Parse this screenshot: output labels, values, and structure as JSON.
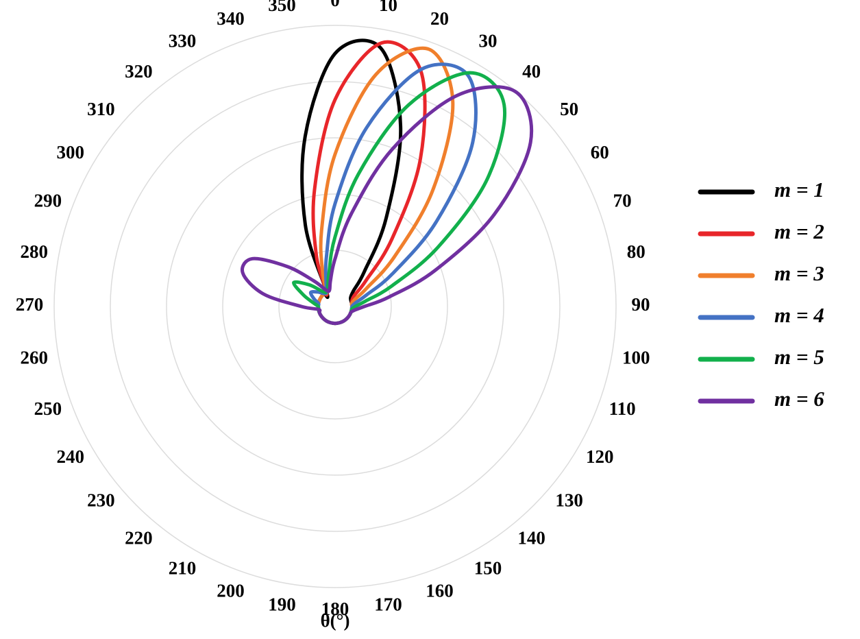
{
  "chart_data": {
    "type": "polar",
    "x_label": "θ(°)",
    "theta": [
      0,
      10,
      20,
      30,
      40,
      50,
      60,
      70,
      80,
      90,
      100,
      110,
      120,
      130,
      140,
      150,
      160,
      170,
      180,
      190,
      200,
      210,
      220,
      230,
      240,
      250,
      260,
      270,
      280,
      290,
      300,
      310,
      320,
      330,
      340,
      350
    ],
    "rlim": [
      0,
      5
    ],
    "rticks": [
      1,
      2,
      3,
      4,
      5
    ],
    "thetaticks": [
      0,
      10,
      20,
      30,
      40,
      50,
      60,
      70,
      80,
      90,
      100,
      110,
      120,
      130,
      140,
      150,
      160,
      170,
      180,
      190,
      200,
      210,
      220,
      230,
      240,
      250,
      260,
      270,
      280,
      290,
      300,
      310,
      320,
      330,
      340,
      350
    ],
    "grid": true,
    "legend": "right",
    "series": [
      {
        "name": "m = 1",
        "color": "#000000",
        "values": [
          4.5,
          4.67,
          3.41,
          1.82,
          0.81,
          0.42,
          0.32,
          0.3,
          0.3,
          0.3,
          0.3,
          0.3,
          0.3,
          0.3,
          0.3,
          0.3,
          0.3,
          0.3,
          0.3,
          0.3,
          0.3,
          0.3,
          0.3,
          0.3,
          0.3,
          0.3,
          0.3,
          0.3,
          0.3,
          0.3,
          0.3,
          0.3,
          0.3,
          0.3,
          1.55,
          3.07
        ]
      },
      {
        "name": "m = 2",
        "color": "#e8262a",
        "values": [
          3.68,
          4.76,
          4.46,
          3.04,
          1.58,
          0.72,
          0.4,
          0.32,
          0.3,
          0.3,
          0.3,
          0.3,
          0.3,
          0.3,
          0.3,
          0.3,
          0.3,
          0.3,
          0.3,
          0.3,
          0.3,
          0.3,
          0.3,
          0.3,
          0.3,
          0.3,
          0.3,
          0.3,
          0.3,
          0.3,
          0.3,
          0.3,
          0.3,
          0.3,
          0.98,
          2.11
        ]
      },
      {
        "name": "m = 3",
        "color": "#f07f2c",
        "values": [
          2.71,
          4.19,
          4.87,
          4.19,
          2.71,
          1.38,
          0.65,
          0.38,
          0.3,
          0.3,
          0.3,
          0.3,
          0.3,
          0.3,
          0.3,
          0.3,
          0.3,
          0.3,
          0.3,
          0.3,
          0.3,
          0.3,
          0.3,
          0.3,
          0.3,
          0.3,
          0.3,
          0.3,
          0.3,
          0.3,
          0.3,
          0.3,
          0.3,
          0.3,
          0.65,
          1.38
        ]
      },
      {
        "name": "m = 4",
        "color": "#4472c4",
        "values": [
          1.83,
          3.23,
          4.49,
          4.74,
          3.81,
          2.36,
          1.2,
          0.59,
          0.37,
          0.3,
          0.3,
          0.3,
          0.3,
          0.3,
          0.3,
          0.3,
          0.3,
          0.3,
          0.3,
          0.3,
          0.3,
          0.3,
          0.3,
          0.3,
          0.3,
          0.3,
          0.3,
          0.3,
          0.3,
          0.4,
          0.5,
          0.4,
          0.3,
          0.3,
          0.47,
          0.89
        ]
      },
      {
        "name": "m = 5",
        "color": "#12b04c",
        "values": [
          1.24,
          2.39,
          3.81,
          4.8,
          4.68,
          3.54,
          2.12,
          1.08,
          0.55,
          0.36,
          0.3,
          0.3,
          0.3,
          0.3,
          0.3,
          0.3,
          0.3,
          0.3,
          0.3,
          0.3,
          0.3,
          0.3,
          0.3,
          0.3,
          0.3,
          0.3,
          0.3,
          0.3,
          0.4,
          0.6,
          0.85,
          0.6,
          0.35,
          0.3,
          0.38,
          0.62
        ]
      },
      {
        "name": "m = 6",
        "color": "#7030a0",
        "values": [
          0.85,
          1.68,
          2.98,
          4.33,
          4.99,
          4.54,
          3.27,
          1.91,
          0.98,
          0.52,
          0.36,
          0.3,
          0.3,
          0.3,
          0.3,
          0.3,
          0.3,
          0.3,
          0.3,
          0.3,
          0.3,
          0.3,
          0.3,
          0.3,
          0.3,
          0.3,
          0.3,
          0.6,
          1.3,
          1.75,
          1.7,
          1.1,
          0.6,
          0.35,
          0.3,
          0.47
        ]
      }
    ]
  }
}
